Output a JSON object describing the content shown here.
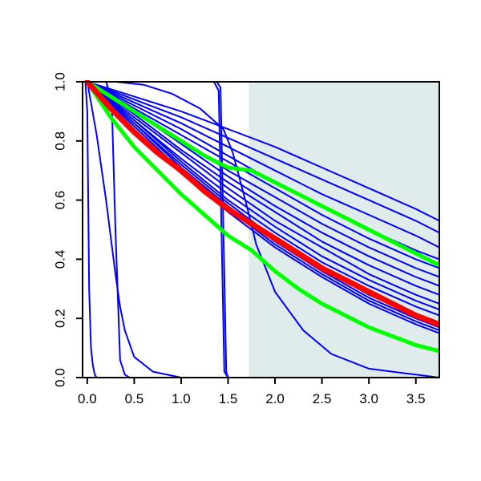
{
  "chart_data": {
    "type": "line",
    "title": "",
    "xlabel": "",
    "ylabel": "",
    "xlim": [
      -0.05,
      3.75
    ],
    "ylim": [
      0.0,
      1.0
    ],
    "x_ticks": [
      0.0,
      0.5,
      1.0,
      1.5,
      2.0,
      2.5,
      3.0,
      3.5
    ],
    "x_tick_labels": [
      "0.0",
      "0.5",
      "1.0",
      "1.5",
      "2.0",
      "2.5",
      "3.0",
      "3.5"
    ],
    "y_ticks": [
      0.0,
      0.2,
      0.4,
      0.6,
      0.8,
      1.0
    ],
    "y_tick_labels": [
      "0.0",
      "0.2",
      "0.4",
      "0.6",
      "0.8",
      "1.0"
    ],
    "grid": false,
    "legend": "none",
    "shaded_region": {
      "x_from": 1.72,
      "x_to": 3.75,
      "color": "#e0ecec"
    },
    "colors": {
      "band": "#0000ff",
      "outliers": "#0000ff",
      "median": "#ff0000",
      "bounds": "#00ff00",
      "shade": "#e0ecec"
    },
    "series": [
      {
        "role": "median",
        "color": "#ff0000",
        "x": [
          0.0,
          0.25,
          0.5,
          0.75,
          1.0,
          1.25,
          1.5,
          1.75,
          2.0,
          2.25,
          2.5,
          2.75,
          3.0,
          3.25,
          3.5,
          3.75
        ],
        "y": [
          1.0,
          0.91,
          0.83,
          0.76,
          0.7,
          0.63,
          0.57,
          0.52,
          0.47,
          0.42,
          0.37,
          0.33,
          0.29,
          0.25,
          0.21,
          0.18
        ]
      },
      {
        "role": "upper-bound",
        "color": "#00ff00",
        "x": [
          0.0,
          0.25,
          0.5,
          0.75,
          1.0,
          1.25,
          1.5,
          1.75,
          2.0,
          2.25,
          2.5,
          2.75,
          3.0,
          3.25,
          3.5,
          3.75
        ],
        "y": [
          1.0,
          0.95,
          0.9,
          0.85,
          0.8,
          0.75,
          0.71,
          0.7,
          0.66,
          0.62,
          0.58,
          0.54,
          0.5,
          0.46,
          0.42,
          0.38
        ]
      },
      {
        "role": "lower-bound",
        "color": "#00ff00",
        "x": [
          0.0,
          0.25,
          0.5,
          0.75,
          1.0,
          1.25,
          1.5,
          1.75,
          2.0,
          2.25,
          2.5,
          2.75,
          3.0,
          3.25,
          3.5,
          3.75
        ],
        "y": [
          1.0,
          0.88,
          0.78,
          0.7,
          0.62,
          0.55,
          0.48,
          0.43,
          0.36,
          0.3,
          0.25,
          0.21,
          0.17,
          0.14,
          0.11,
          0.09
        ]
      },
      {
        "role": "band",
        "color": "#0000ff",
        "x": [
          0.0,
          0.5,
          1.0,
          1.5,
          2.0,
          2.5,
          3.0,
          3.5,
          3.75
        ],
        "y": [
          1.0,
          0.94,
          0.88,
          0.81,
          0.74,
          0.67,
          0.6,
          0.53,
          0.49
        ]
      },
      {
        "role": "band",
        "color": "#0000ff",
        "x": [
          0.0,
          0.5,
          1.0,
          1.5,
          2.0,
          2.5,
          3.0,
          3.5,
          3.75
        ],
        "y": [
          1.0,
          0.95,
          0.9,
          0.84,
          0.78,
          0.71,
          0.64,
          0.57,
          0.53
        ]
      },
      {
        "role": "band",
        "color": "#0000ff",
        "x": [
          0.0,
          0.5,
          1.0,
          1.5,
          2.0,
          2.5,
          3.0,
          3.5,
          3.75
        ],
        "y": [
          1.0,
          0.93,
          0.86,
          0.78,
          0.7,
          0.62,
          0.55,
          0.48,
          0.44
        ]
      },
      {
        "role": "band",
        "color": "#0000ff",
        "x": [
          0.0,
          0.5,
          1.0,
          1.5,
          2.0,
          2.5,
          3.0,
          3.5,
          3.75
        ],
        "y": [
          1.0,
          0.92,
          0.84,
          0.75,
          0.66,
          0.58,
          0.5,
          0.43,
          0.4
        ]
      },
      {
        "role": "band",
        "color": "#0000ff",
        "x": [
          0.0,
          0.5,
          1.0,
          1.5,
          2.0,
          2.5,
          3.0,
          3.5,
          3.75
        ],
        "y": [
          1.0,
          0.91,
          0.82,
          0.73,
          0.64,
          0.55,
          0.47,
          0.4,
          0.37
        ]
      },
      {
        "role": "band",
        "color": "#0000ff",
        "x": [
          0.0,
          0.5,
          1.0,
          1.5,
          2.0,
          2.5,
          3.0,
          3.5,
          3.75
        ],
        "y": [
          1.0,
          0.9,
          0.8,
          0.7,
          0.61,
          0.52,
          0.44,
          0.37,
          0.34
        ]
      },
      {
        "role": "band",
        "color": "#0000ff",
        "x": [
          0.0,
          0.5,
          1.0,
          1.5,
          2.0,
          2.5,
          3.0,
          3.5,
          3.75
        ],
        "y": [
          1.0,
          0.9,
          0.79,
          0.68,
          0.58,
          0.49,
          0.41,
          0.34,
          0.31
        ]
      },
      {
        "role": "band",
        "color": "#0000ff",
        "x": [
          0.0,
          0.5,
          1.0,
          1.5,
          2.0,
          2.5,
          3.0,
          3.5,
          3.75
        ],
        "y": [
          1.0,
          0.89,
          0.77,
          0.66,
          0.56,
          0.46,
          0.38,
          0.31,
          0.28
        ]
      },
      {
        "role": "band",
        "color": "#0000ff",
        "x": [
          0.0,
          0.5,
          1.0,
          1.5,
          2.0,
          2.5,
          3.0,
          3.5,
          3.75
        ],
        "y": [
          1.0,
          0.88,
          0.76,
          0.64,
          0.53,
          0.44,
          0.35,
          0.28,
          0.25
        ]
      },
      {
        "role": "band",
        "color": "#0000ff",
        "x": [
          0.0,
          0.5,
          1.0,
          1.5,
          2.0,
          2.5,
          3.0,
          3.5,
          3.75
        ],
        "y": [
          1.0,
          0.87,
          0.74,
          0.62,
          0.51,
          0.41,
          0.33,
          0.26,
          0.23
        ]
      },
      {
        "role": "band",
        "color": "#0000ff",
        "x": [
          0.0,
          0.5,
          1.0,
          1.5,
          2.0,
          2.5,
          3.0,
          3.5,
          3.75
        ],
        "y": [
          1.0,
          0.87,
          0.73,
          0.6,
          0.49,
          0.39,
          0.31,
          0.24,
          0.21
        ]
      },
      {
        "role": "band",
        "color": "#0000ff",
        "x": [
          0.0,
          0.5,
          1.0,
          1.5,
          2.0,
          2.5,
          3.0,
          3.5,
          3.75
        ],
        "y": [
          1.0,
          0.86,
          0.72,
          0.59,
          0.47,
          0.37,
          0.28,
          0.21,
          0.18
        ]
      },
      {
        "role": "band",
        "color": "#0000ff",
        "x": [
          0.0,
          0.5,
          1.0,
          1.5,
          2.0,
          2.5,
          3.0,
          3.5,
          3.75
        ],
        "y": [
          1.0,
          0.86,
          0.71,
          0.58,
          0.46,
          0.36,
          0.27,
          0.2,
          0.17
        ]
      },
      {
        "role": "band",
        "color": "#0000ff",
        "x": [
          0.0,
          0.5,
          1.0,
          1.5,
          2.0,
          2.5,
          3.0,
          3.5,
          3.75
        ],
        "y": [
          1.0,
          0.85,
          0.7,
          0.57,
          0.45,
          0.35,
          0.26,
          0.19,
          0.16
        ]
      },
      {
        "role": "band",
        "color": "#0000ff",
        "x": [
          0.0,
          0.5,
          1.0,
          1.5,
          2.0,
          2.5,
          3.0,
          3.5,
          3.75
        ],
        "y": [
          1.0,
          0.84,
          0.69,
          0.56,
          0.44,
          0.34,
          0.25,
          0.18,
          0.15
        ]
      },
      {
        "role": "outlier",
        "color": "#0000ff",
        "x": [
          -0.02,
          0.0,
          0.02,
          0.04,
          0.06,
          0.08,
          0.1
        ],
        "y": [
          1.0,
          0.9,
          0.3,
          0.1,
          0.04,
          0.01,
          0.0
        ]
      },
      {
        "role": "outlier",
        "color": "#0000ff",
        "x": [
          0.0,
          0.1,
          0.2,
          0.3,
          0.35,
          0.4,
          0.5,
          0.7,
          1.0
        ],
        "y": [
          1.0,
          0.82,
          0.6,
          0.35,
          0.24,
          0.16,
          0.07,
          0.02,
          0.0
        ]
      },
      {
        "role": "outlier",
        "color": "#0000ff",
        "x": [
          0.0,
          0.2,
          0.26,
          0.3,
          0.35,
          0.4,
          0.45,
          0.5
        ],
        "y": [
          1.0,
          1.0,
          0.94,
          0.5,
          0.06,
          0.01,
          0.0,
          0.0
        ]
      },
      {
        "role": "outlier",
        "color": "#0000ff",
        "x": [
          0.0,
          0.3,
          0.6,
          0.9,
          1.2,
          1.45,
          1.55,
          1.7,
          1.8,
          2.0,
          2.3,
          2.6,
          3.0,
          3.5,
          3.75
        ],
        "y": [
          1.0,
          1.0,
          0.99,
          0.96,
          0.91,
          0.84,
          0.76,
          0.58,
          0.45,
          0.29,
          0.16,
          0.08,
          0.03,
          0.01,
          0.0
        ]
      },
      {
        "role": "outlier",
        "color": "#0000ff",
        "x": [
          0.0,
          1.38,
          1.42,
          1.45,
          1.48,
          1.5,
          1.55,
          1.6
        ],
        "y": [
          1.0,
          1.0,
          0.98,
          0.5,
          0.02,
          0.0,
          0.0,
          0.0
        ]
      },
      {
        "role": "outlier",
        "color": "#0000ff",
        "x": [
          0.0,
          1.35,
          1.4,
          1.43,
          1.46,
          1.5
        ],
        "y": [
          1.0,
          1.0,
          0.97,
          0.5,
          0.02,
          0.0
        ]
      }
    ]
  }
}
